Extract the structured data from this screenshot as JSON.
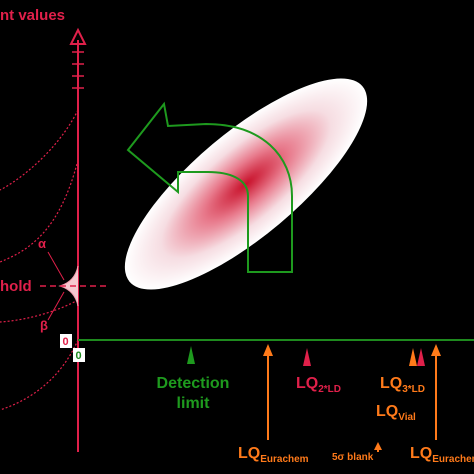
{
  "labels": {
    "y_axis_title": "nt values",
    "threshold": "hold",
    "alpha": "α",
    "beta": "β",
    "origin_y": "0",
    "origin_x": "0",
    "detection_limit_line1": "Detection",
    "detection_limit_line2": "limit",
    "lq_2ld_main": "LQ",
    "lq_2ld_sub": "2*LD",
    "lq_3ld_main": "LQ",
    "lq_3ld_sub": "3*LD",
    "lq_vial_main": "LQ",
    "lq_vial_sub": "Vial",
    "lq_eurachem_main": "LQ",
    "lq_eurachem_sub": "Eurachem",
    "five_sigma_blank": "5σ blank",
    "lq_eurachem2_main": "LQ",
    "lq_eurachem2_sub": "Eurachem"
  },
  "colors": {
    "background": "#000000",
    "axis_y": "#e0204a",
    "axis_x": "#1e8a1e",
    "detection": "#1e9a1e",
    "lq_red": "#e0204a",
    "lq_orange": "#ff7a1a",
    "ellipse_core": "#d0102a",
    "arrow_outline": "#1e9a1e"
  }
}
